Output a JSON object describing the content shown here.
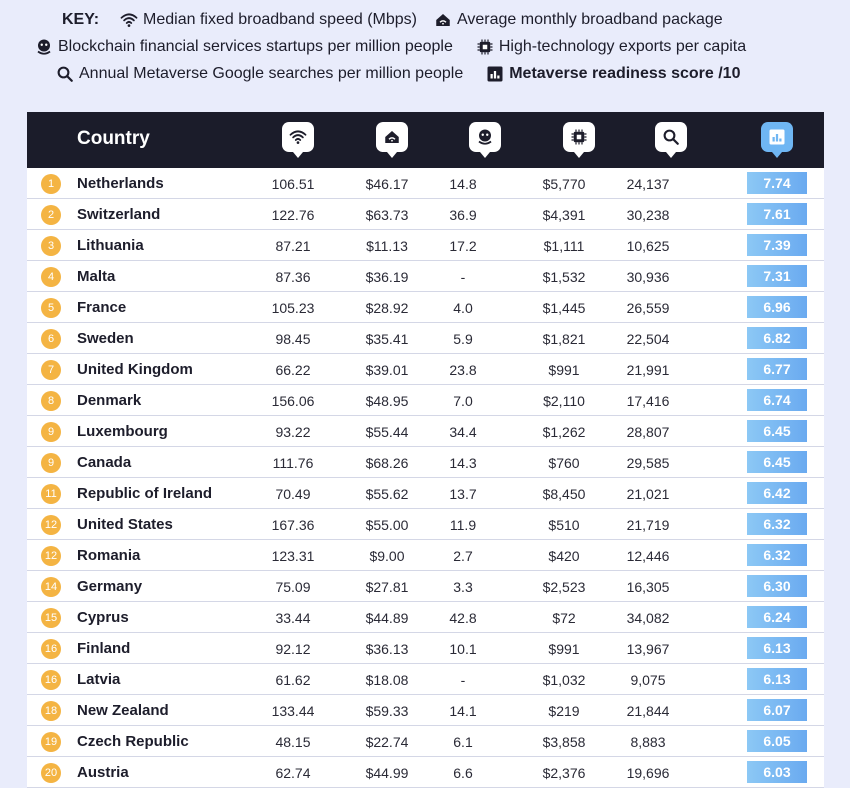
{
  "key": {
    "label": "KEY:",
    "items": [
      {
        "icon": "wifi-icon",
        "text": "Median fixed broadband speed (Mbps)"
      },
      {
        "icon": "house-signal-icon",
        "text": "Average monthly broadband package"
      },
      {
        "icon": "bitcoin-hand-icon",
        "text": "Blockchain financial services startups per million people"
      },
      {
        "icon": "chip-icon",
        "text": "High-technology exports per capita"
      },
      {
        "icon": "search-icon",
        "text": "Annual Metaverse Google searches per million people"
      },
      {
        "icon": "bar-chart-icon",
        "text": "Metaverse readiness score /10"
      }
    ]
  },
  "colors": {
    "header_bg": "#1b1c2a",
    "rank_badge": "#f4b443",
    "score_start": "#8cc8f5",
    "score_end": "#6aaaf0",
    "page_bg": "#e9ecfb"
  },
  "chart_data": {
    "type": "table",
    "header": {
      "country": "Country"
    },
    "columns": [
      "Median fixed broadband speed (Mbps)",
      "Average monthly broadband package",
      "Blockchain financial services startups per million people",
      "High-technology exports per capita",
      "Annual Metaverse Google searches per million people",
      "Metaverse readiness score /10"
    ],
    "rows": [
      {
        "rank": "1",
        "country": "Netherlands",
        "speed": "106.51",
        "package": "$46.17",
        "blockchain": "14.8",
        "exports": "$5,770",
        "searches": "24,137",
        "score": "7.74"
      },
      {
        "rank": "2",
        "country": "Switzerland",
        "speed": "122.76",
        "package": "$63.73",
        "blockchain": "36.9",
        "exports": "$4,391",
        "searches": "30,238",
        "score": "7.61"
      },
      {
        "rank": "3",
        "country": "Lithuania",
        "speed": "87.21",
        "package": "$11.13",
        "blockchain": "17.2",
        "exports": "$1,111",
        "searches": "10,625",
        "score": "7.39"
      },
      {
        "rank": "4",
        "country": "Malta",
        "speed": "87.36",
        "package": "$36.19",
        "blockchain": "-",
        "exports": "$1,532",
        "searches": "30,936",
        "score": "7.31"
      },
      {
        "rank": "5",
        "country": "France",
        "speed": "105.23",
        "package": "$28.92",
        "blockchain": "4.0",
        "exports": "$1,445",
        "searches": "26,559",
        "score": "6.96"
      },
      {
        "rank": "6",
        "country": "Sweden",
        "speed": "98.45",
        "package": "$35.41",
        "blockchain": "5.9",
        "exports": "$1,821",
        "searches": "22,504",
        "score": "6.82"
      },
      {
        "rank": "7",
        "country": "United Kingdom",
        "speed": "66.22",
        "package": "$39.01",
        "blockchain": "23.8",
        "exports": "$991",
        "searches": "21,991",
        "score": "6.77"
      },
      {
        "rank": "8",
        "country": "Denmark",
        "speed": "156.06",
        "package": "$48.95",
        "blockchain": "7.0",
        "exports": "$2,110",
        "searches": "17,416",
        "score": "6.74"
      },
      {
        "rank": "9",
        "country": "Luxembourg",
        "speed": "93.22",
        "package": "$55.44",
        "blockchain": "34.4",
        "exports": "$1,262",
        "searches": "28,807",
        "score": "6.45"
      },
      {
        "rank": "9",
        "country": "Canada",
        "speed": "111.76",
        "package": "$68.26",
        "blockchain": "14.3",
        "exports": "$760",
        "searches": "29,585",
        "score": "6.45"
      },
      {
        "rank": "11",
        "country": "Republic of Ireland",
        "speed": "70.49",
        "package": "$55.62",
        "blockchain": "13.7",
        "exports": "$8,450",
        "searches": "21,021",
        "score": "6.42"
      },
      {
        "rank": "12",
        "country": "United States",
        "speed": "167.36",
        "package": "$55.00",
        "blockchain": "11.9",
        "exports": "$510",
        "searches": "21,719",
        "score": "6.32"
      },
      {
        "rank": "12",
        "country": "Romania",
        "speed": "123.31",
        "package": "$9.00",
        "blockchain": "2.7",
        "exports": "$420",
        "searches": "12,446",
        "score": "6.32"
      },
      {
        "rank": "14",
        "country": "Germany",
        "speed": "75.09",
        "package": "$27.81",
        "blockchain": "3.3",
        "exports": "$2,523",
        "searches": "16,305",
        "score": "6.30"
      },
      {
        "rank": "15",
        "country": "Cyprus",
        "speed": "33.44",
        "package": "$44.89",
        "blockchain": "42.8",
        "exports": "$72",
        "searches": "34,082",
        "score": "6.24"
      },
      {
        "rank": "16",
        "country": "Finland",
        "speed": "92.12",
        "package": "$36.13",
        "blockchain": "10.1",
        "exports": "$991",
        "searches": "13,967",
        "score": "6.13"
      },
      {
        "rank": "16",
        "country": "Latvia",
        "speed": "61.62",
        "package": "$18.08",
        "blockchain": "-",
        "exports": "$1,032",
        "searches": "9,075",
        "score": "6.13"
      },
      {
        "rank": "18",
        "country": "New Zealand",
        "speed": "133.44",
        "package": "$59.33",
        "blockchain": "14.1",
        "exports": "$219",
        "searches": "21,844",
        "score": "6.07"
      },
      {
        "rank": "19",
        "country": "Czech Republic",
        "speed": "48.15",
        "package": "$22.74",
        "blockchain": "6.1",
        "exports": "$3,858",
        "searches": "8,883",
        "score": "6.05"
      },
      {
        "rank": "20",
        "country": "Austria",
        "speed": "62.74",
        "package": "$44.99",
        "blockchain": "6.6",
        "exports": "$2,376",
        "searches": "19,696",
        "score": "6.03"
      }
    ]
  }
}
